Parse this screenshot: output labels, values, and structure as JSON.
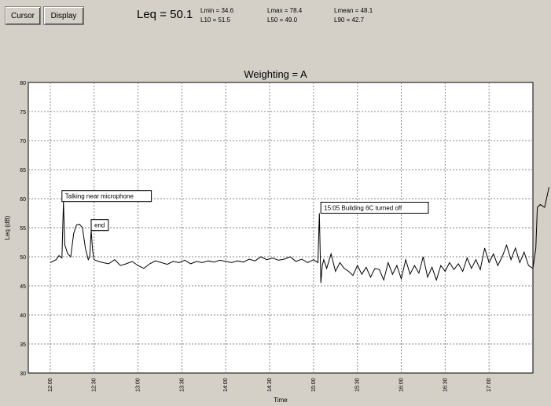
{
  "toolbar": {
    "cursor_label": "Cursor",
    "display_label": "Display"
  },
  "stats": {
    "leq": "Leq = 50.1",
    "lmin": "Lmin = 34.6",
    "l10": "L10 = 51.5",
    "lmax": "Lmax = 78.4",
    "l50": "L50 = 49.0",
    "lmean": "Lmean = 48.1",
    "l90": "L90 = 42.7"
  },
  "chart_data": {
    "type": "line",
    "title": "Weighting = A",
    "xlabel": "Time",
    "ylabel": "Leq (dB)",
    "ylim": [
      30,
      80
    ],
    "yticks": [
      30,
      35,
      40,
      45,
      50,
      55,
      60,
      65,
      70,
      75,
      80
    ],
    "xticks": [
      "12:00",
      "12:30",
      "13:00",
      "13:30",
      "14:00",
      "14:30",
      "15:00",
      "15:30",
      "16:00",
      "16:30",
      "17:00"
    ],
    "grid": true,
    "annotations": [
      {
        "text": "Talking near microphone",
        "x_min": 8,
        "y": 59.5
      },
      {
        "text": "end",
        "x_min": 28,
        "y": 54.5
      },
      {
        "text": "15:05 Building 6C turned off",
        "x_min": 185,
        "y": 57.5
      }
    ],
    "series": [
      {
        "x_min": [
          0,
          4,
          6,
          8,
          9,
          10,
          12,
          14,
          16,
          18,
          20,
          22,
          24,
          26,
          27,
          28,
          29,
          30,
          33,
          36,
          40,
          44,
          48,
          52,
          56,
          60,
          64,
          68,
          72,
          76,
          80,
          84,
          88,
          92,
          96,
          100,
          104,
          108,
          112,
          116,
          120,
          124,
          128,
          132,
          136,
          140,
          144,
          148,
          152,
          156,
          160,
          164,
          168,
          172,
          176,
          180,
          183,
          184,
          185,
          186,
          187,
          189,
          192,
          195,
          198,
          201,
          204,
          207,
          210,
          213,
          216,
          219,
          222,
          225,
          228,
          231,
          234,
          237,
          240,
          243,
          246,
          249,
          252,
          255,
          258,
          261,
          264,
          267,
          270,
          273,
          276,
          279,
          282,
          285,
          288,
          291,
          294,
          297,
          300,
          303,
          306,
          309,
          312,
          315,
          318,
          321,
          324,
          327,
          330,
          332,
          333,
          335,
          338,
          341
        ],
        "values": [
          49.0,
          49.5,
          50.2,
          49.8,
          59.5,
          52.0,
          50.5,
          50.0,
          54.0,
          55.5,
          55.6,
          55.0,
          51.5,
          49.5,
          50.0,
          54.5,
          51.0,
          49.5,
          49.2,
          49.0,
          48.8,
          49.5,
          48.5,
          48.8,
          49.2,
          48.5,
          48.0,
          48.8,
          49.3,
          49.0,
          48.7,
          49.2,
          49.0,
          49.4,
          48.8,
          49.2,
          49.0,
          49.3,
          49.1,
          49.4,
          49.2,
          49.0,
          49.3,
          49.1,
          49.6,
          49.3,
          50.0,
          49.5,
          49.8,
          49.4,
          49.6,
          50.0,
          49.2,
          49.6,
          49.0,
          49.5,
          49.0,
          57.5,
          45.5,
          48.5,
          49.5,
          48.0,
          50.5,
          47.5,
          49.0,
          48.0,
          47.5,
          46.8,
          48.5,
          47.0,
          48.2,
          46.5,
          48.0,
          47.8,
          46.0,
          49.0,
          47.0,
          48.5,
          46.2,
          49.5,
          47.0,
          48.5,
          47.2,
          50.0,
          46.5,
          48.2,
          46.0,
          48.5,
          47.5,
          49.0,
          47.8,
          48.8,
          47.5,
          49.8,
          48.0,
          49.5,
          47.8,
          51.5,
          49.0,
          50.5,
          48.5,
          50.0,
          52.0,
          49.5,
          51.5,
          49.0,
          50.8,
          48.5,
          48.0,
          51.5,
          58.5,
          59.0,
          58.5,
          62.0
        ]
      }
    ]
  }
}
